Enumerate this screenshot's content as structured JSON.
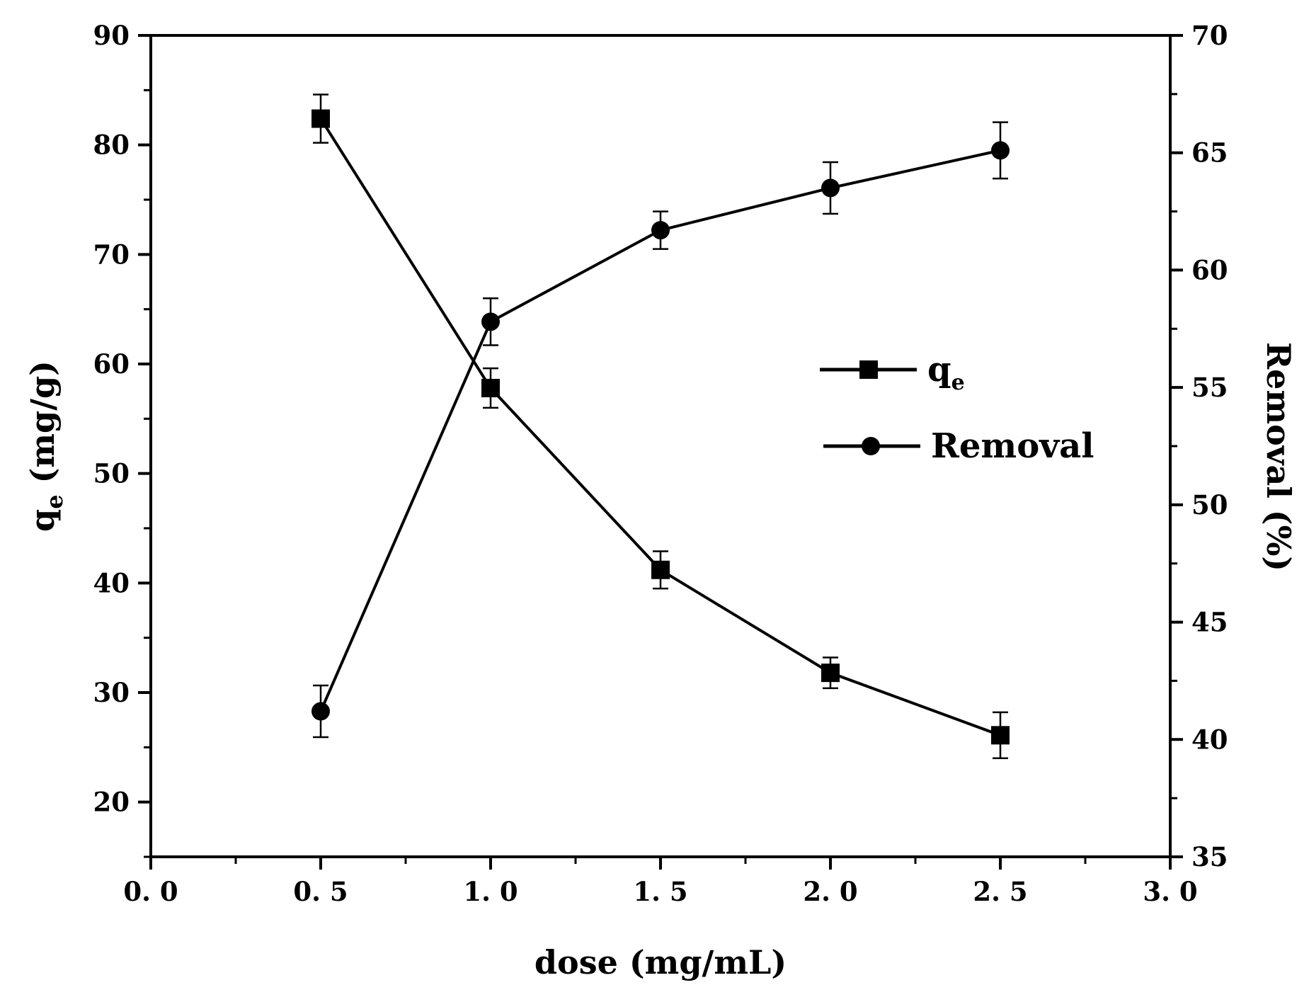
{
  "chart_data": {
    "type": "line",
    "title": "",
    "x": [
      0.5,
      1.0,
      1.5,
      2.0,
      2.5
    ],
    "xlabel": "dose (mg/mL)",
    "xlim": [
      0,
      3
    ],
    "x_ticks": [
      "0. 0",
      "0. 5",
      "1. 0",
      "1. 5",
      "2. 0",
      "2. 5",
      "3. 0"
    ],
    "x_tick_values": [
      0,
      0.5,
      1.0,
      1.5,
      2.0,
      2.5,
      3.0
    ],
    "y_left": {
      "label_main": "q",
      "label_sub": "e",
      "label_rest": " (mg/g)",
      "lim": [
        15,
        90
      ],
      "ticks": [
        20,
        30,
        40,
        50,
        60,
        70,
        80,
        90
      ]
    },
    "y_right": {
      "label": "Removal (%)",
      "lim": [
        35,
        70
      ],
      "ticks": [
        35,
        40,
        45,
        50,
        55,
        60,
        65,
        70
      ]
    },
    "series": [
      {
        "name": "qe",
        "legend_main": "q",
        "legend_sub": "e",
        "axis": "left",
        "marker": "square",
        "values": [
          82.4,
          57.8,
          41.2,
          31.8,
          26.1
        ],
        "errors": [
          2.2,
          1.8,
          1.7,
          1.4,
          2.1
        ]
      },
      {
        "name": "Removal",
        "legend_main": "Removal",
        "axis": "right",
        "marker": "circle",
        "values": [
          41.2,
          57.8,
          61.7,
          63.5,
          65.1
        ],
        "errors": [
          1.1,
          1.0,
          0.8,
          1.1,
          1.2
        ]
      }
    ],
    "colors": {
      "line": "#000000",
      "background": "#ffffff"
    },
    "legend_position": "center-right"
  }
}
